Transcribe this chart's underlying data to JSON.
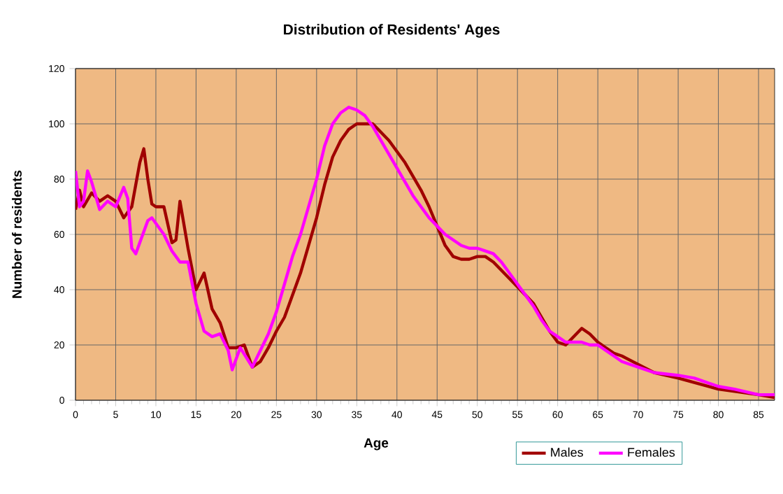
{
  "chart_data": {
    "type": "line",
    "title": "Distribution of Residents' Ages",
    "xlabel": "Age",
    "ylabel": "Number of residents",
    "xlim": [
      0,
      87
    ],
    "xticks": [
      0,
      5,
      10,
      15,
      20,
      25,
      30,
      35,
      40,
      45,
      50,
      55,
      60,
      65,
      70,
      75,
      80,
      85
    ],
    "ylim": [
      0,
      120
    ],
    "yticks": [
      0,
      20,
      40,
      60,
      80,
      100,
      120
    ],
    "grid": true,
    "legend": "bottom right",
    "marker": "none",
    "line_style": "solid",
    "series": [
      {
        "name": "Males",
        "color": "#a00000",
        "x": [
          0,
          0.5,
          1,
          2,
          3,
          4,
          5,
          6,
          7,
          8,
          8.5,
          9,
          9.5,
          10,
          11,
          12,
          12.5,
          13,
          14,
          15,
          16,
          17,
          18,
          19,
          20,
          21,
          22,
          23,
          24,
          25,
          26,
          27,
          28,
          29,
          30,
          31,
          32,
          33,
          34,
          35,
          36,
          37,
          38,
          39,
          40,
          41,
          42,
          43,
          44,
          45,
          46,
          47,
          48,
          49,
          50,
          51,
          52,
          53,
          54,
          55,
          56,
          57,
          58,
          59,
          60,
          61,
          62,
          63,
          64,
          65,
          66,
          67,
          68,
          70,
          72,
          75,
          80,
          85,
          87
        ],
        "values": [
          69,
          76,
          70,
          75,
          72,
          74,
          72,
          66,
          70,
          86,
          91,
          80,
          71,
          70,
          70,
          57,
          58,
          72,
          55,
          40,
          46,
          33,
          28,
          19,
          19,
          20,
          12,
          14,
          19,
          25,
          30,
          38,
          46,
          56,
          66,
          78,
          88,
          94,
          98,
          100,
          100,
          100,
          97,
          94,
          90,
          86,
          81,
          76,
          70,
          63,
          56,
          52,
          51,
          51,
          52,
          52,
          50,
          47,
          44,
          41,
          38,
          35,
          30,
          25,
          21,
          20,
          23,
          26,
          24,
          21,
          19,
          17,
          16,
          13,
          10,
          8,
          4,
          2,
          1
        ]
      },
      {
        "name": "Females",
        "color": "#ff00ff",
        "x": [
          0,
          0.5,
          1,
          1.5,
          2,
          3,
          4,
          5,
          6,
          6.5,
          7,
          7.5,
          8,
          9,
          9.5,
          10,
          11,
          12,
          13,
          14,
          15,
          16,
          17,
          18,
          19,
          19.5,
          20,
          20.5,
          22,
          23,
          24,
          25,
          26,
          27,
          28,
          29,
          30,
          31,
          32,
          33,
          34,
          35,
          36,
          37,
          38,
          39,
          40,
          41,
          42,
          43,
          44,
          45,
          46,
          47,
          48,
          49,
          50,
          51,
          52,
          53,
          54,
          55,
          56,
          57,
          58,
          59,
          60,
          61,
          62,
          63,
          64,
          65,
          66,
          67,
          68,
          70,
          72,
          75,
          77,
          78,
          80,
          82,
          85,
          87
        ],
        "values": [
          83,
          70,
          72,
          83,
          79,
          69,
          72,
          70,
          77,
          73,
          55,
          53,
          57,
          65,
          66,
          64,
          60,
          54,
          50,
          50,
          35,
          25,
          23,
          24,
          18,
          11,
          15,
          19,
          12,
          18,
          24,
          32,
          42,
          52,
          60,
          70,
          80,
          92,
          100,
          104,
          106,
          105,
          103,
          99,
          94,
          89,
          84,
          79,
          74,
          70,
          66,
          63,
          60,
          58,
          56,
          55,
          55,
          54,
          53,
          50,
          46,
          42,
          38,
          34,
          29,
          25,
          23,
          21,
          21,
          21,
          20,
          20,
          18,
          16,
          14,
          12,
          10,
          9,
          8,
          7,
          5,
          4,
          2,
          2
        ]
      }
    ]
  }
}
